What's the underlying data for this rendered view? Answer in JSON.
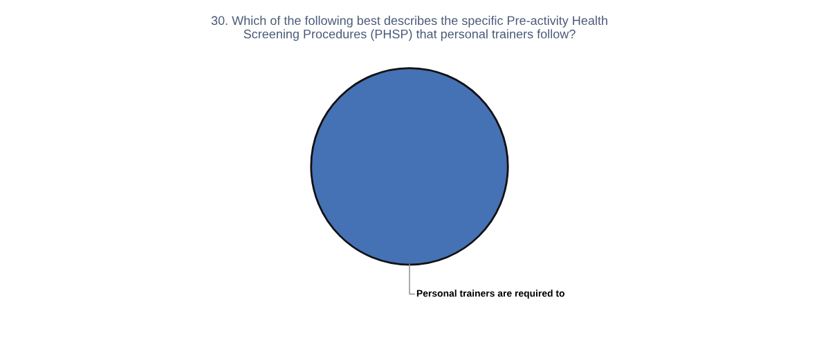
{
  "chart_data": {
    "type": "pie",
    "title": "30. Which of the following best describes the specific Pre-activity Health\nScreening Procedures (PHSP) that personal trainers follow?",
    "categories": [
      "Personal trainers are required to"
    ],
    "values": [
      100
    ],
    "colors": [
      "#4571b5"
    ]
  }
}
